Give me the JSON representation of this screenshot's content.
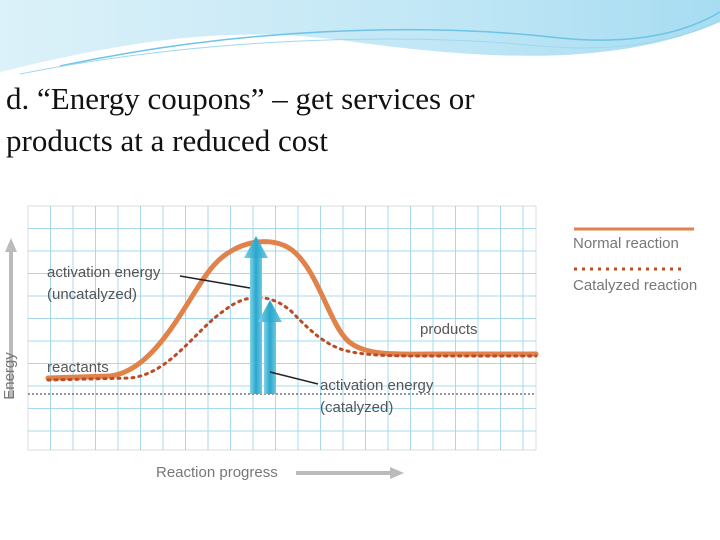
{
  "slide": {
    "title_line1": "d. “Energy coupons” – get services or",
    "title_line2": "products at a reduced cost"
  },
  "colors": {
    "normal": "#e0824a",
    "catalyzed": "#bf4a26",
    "arrow": "#29a9c9",
    "grid": "#a8d8ec",
    "text": "#555555",
    "axis_arrow": "#b8b8b8"
  },
  "chart_data": {
    "type": "line",
    "xlabel": "Reaction progress",
    "ylabel": "Energy",
    "grid": true,
    "legend_position": "right",
    "series": [
      {
        "name": "Normal reaction",
        "style": "solid"
      },
      {
        "name": "Catalyzed reaction",
        "style": "dotted"
      }
    ],
    "annotations": {
      "activation_uncatalyzed": [
        "activation energy",
        "(uncatalyzed)"
      ],
      "activation_catalyzed": [
        "activation energy",
        "(catalyzed)"
      ],
      "reactants": "reactants",
      "products": "products"
    }
  }
}
